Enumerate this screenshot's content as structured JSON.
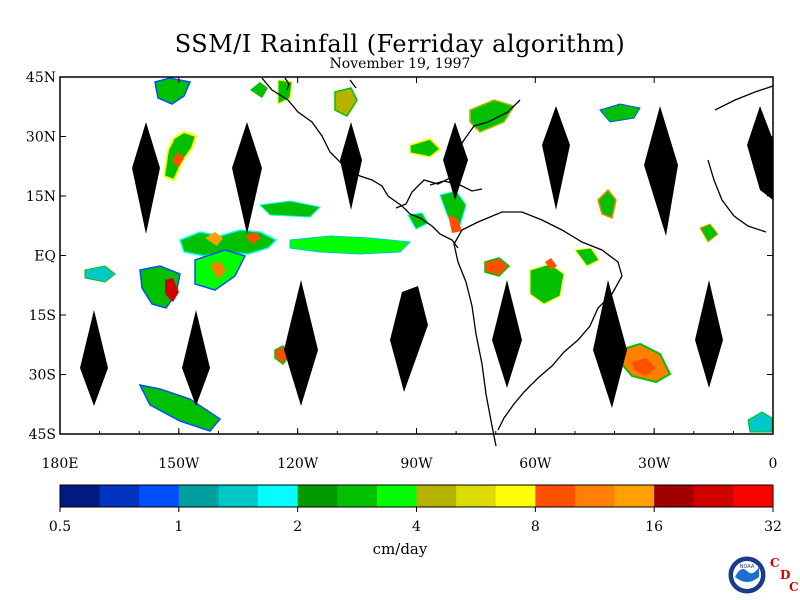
{
  "title": "SSM/I Rainfall (Ferriday algorithm)",
  "date": "November 19, 1997",
  "map": {
    "lon_range": [
      -180,
      0
    ],
    "lat_range": [
      -45,
      45
    ],
    "lat_ticks": [
      {
        "value": 45,
        "label": "45N"
      },
      {
        "value": 30,
        "label": "30N"
      },
      {
        "value": 15,
        "label": "15N"
      },
      {
        "value": 0,
        "label": "EQ"
      },
      {
        "value": -15,
        "label": "15S"
      },
      {
        "value": -30,
        "label": "30S"
      },
      {
        "value": -45,
        "label": "45S"
      }
    ],
    "lon_ticks": [
      {
        "value": -180,
        "label": "180E"
      },
      {
        "value": -150,
        "label": "150W"
      },
      {
        "value": -120,
        "label": "120W"
      },
      {
        "value": -90,
        "label": "90W"
      },
      {
        "value": -60,
        "label": "60W"
      },
      {
        "value": -30,
        "label": "30W"
      },
      {
        "value": 0,
        "label": "0"
      }
    ]
  },
  "colorbar": {
    "unit": "cm/day",
    "colors": [
      "#001a80",
      "#0033c0",
      "#0050ff",
      "#00a0a0",
      "#00c8c8",
      "#00ffff",
      "#009900",
      "#00c000",
      "#00ff00",
      "#b4b400",
      "#dcdc00",
      "#ffff00",
      "#ff5000",
      "#ff8000",
      "#ffa000",
      "#a00000",
      "#d00000",
      "#ff0000"
    ],
    "ticks": [
      {
        "index": 0,
        "label": "0.5"
      },
      {
        "index": 3,
        "label": "1"
      },
      {
        "index": 6,
        "label": "2"
      },
      {
        "index": 9,
        "label": "4"
      },
      {
        "index": 12,
        "label": "8"
      },
      {
        "index": 15,
        "label": "16"
      },
      {
        "index": 18,
        "label": "32"
      }
    ]
  },
  "logo": {
    "name": "noaa-logo",
    "text": "NOAA",
    "cdc": [
      "C",
      "D",
      "C"
    ]
  }
}
